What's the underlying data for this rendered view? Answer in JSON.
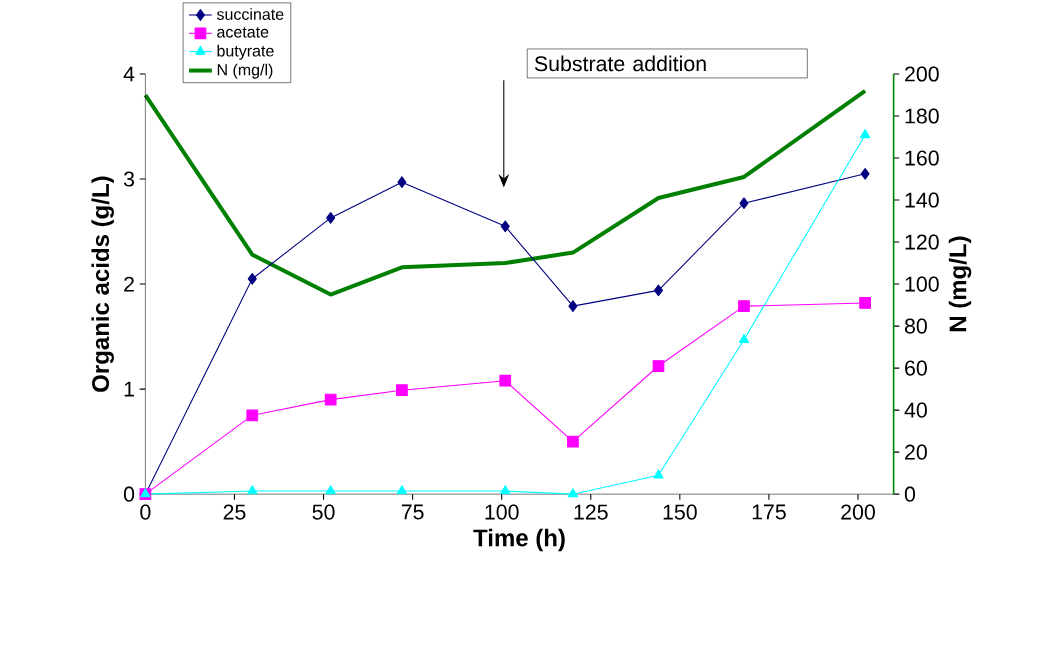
{
  "chart_data": {
    "type": "line",
    "xlabel": "Time (h)",
    "ylabel": "Organic acids (g/L)",
    "y2label": "N (mg/L)",
    "x": [
      0,
      30,
      52,
      72,
      101,
      120,
      144,
      168,
      202
    ],
    "series": [
      {
        "name": "succinate",
        "color": "#000080",
        "marker": "diamond",
        "values": [
          0,
          2.05,
          2.63,
          2.97,
          2.55,
          1.79,
          1.94,
          2.77,
          3.05
        ]
      },
      {
        "name": "acetate",
        "color": "#ff00ff",
        "marker": "square",
        "values": [
          0,
          0.75,
          0.9,
          0.99,
          1.08,
          0.5,
          1.22,
          1.79,
          1.82
        ]
      },
      {
        "name": "butyrate",
        "color": "#00ffff",
        "marker": "triangle",
        "values": [
          0,
          0.03,
          0.03,
          0.03,
          0.03,
          0,
          0.18,
          1.47,
          3.42
        ]
      },
      {
        "name": "N (mg/l)",
        "color": "#008000",
        "marker": "none",
        "axis": "y2",
        "values": [
          190,
          114,
          95,
          108,
          110,
          115,
          141,
          151,
          192
        ]
      }
    ],
    "xlim": [
      0,
      210
    ],
    "xticks": [
      0,
      25,
      50,
      75,
      100,
      125,
      150,
      175,
      200
    ],
    "ylim": [
      0,
      4
    ],
    "yticks": [
      0,
      1,
      2,
      3,
      4
    ],
    "y2lim": [
      0,
      200
    ],
    "y2ticks": [
      0,
      20,
      40,
      60,
      80,
      100,
      120,
      140,
      160,
      180,
      200
    ],
    "annotations": [
      "Substrate addition"
    ],
    "legend": "top left",
    "grid": false
  }
}
